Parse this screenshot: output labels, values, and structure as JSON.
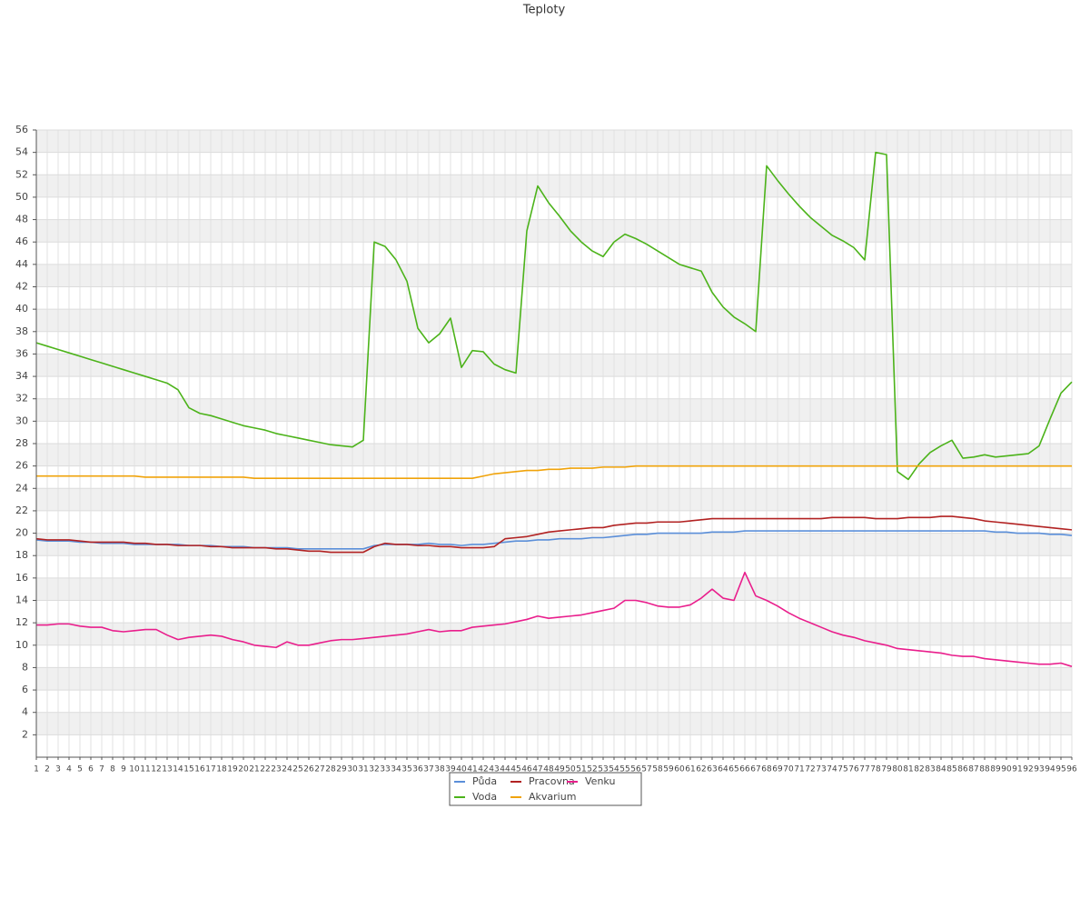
{
  "chart_data": {
    "type": "line",
    "title": "Teploty",
    "categories": [
      "1",
      "2",
      "3",
      "4",
      "5",
      "6",
      "7",
      "8",
      "9",
      "10",
      "11",
      "12",
      "13",
      "14",
      "15",
      "16",
      "17",
      "18",
      "19",
      "20",
      "21",
      "22",
      "23",
      "24",
      "25",
      "26",
      "27",
      "28",
      "29",
      "30",
      "31",
      "32",
      "33",
      "34",
      "35",
      "36",
      "37",
      "38",
      "39",
      "40",
      "41",
      "42",
      "43",
      "44",
      "45",
      "46",
      "47",
      "48",
      "49",
      "50",
      "51",
      "52",
      "53",
      "54",
      "55",
      "56",
      "57",
      "58",
      "59",
      "60",
      "61",
      "62",
      "63",
      "64",
      "65",
      "66",
      "67",
      "68",
      "69",
      "70",
      "71",
      "72",
      "73",
      "74",
      "75",
      "76",
      "77",
      "78",
      "79",
      "80",
      "81",
      "82",
      "83",
      "84",
      "85",
      "86",
      "87",
      "88",
      "89",
      "90",
      "91",
      "92",
      "93",
      "94",
      "95",
      "96"
    ],
    "series": [
      {
        "name": "Půda",
        "color": "#5b8fd9",
        "values": [
          19.4,
          19.3,
          19.3,
          19.3,
          19.2,
          19.2,
          19.1,
          19.1,
          19.1,
          19.0,
          19.0,
          19.0,
          19.0,
          19.0,
          18.9,
          18.9,
          18.9,
          18.8,
          18.8,
          18.8,
          18.7,
          18.7,
          18.7,
          18.7,
          18.6,
          18.6,
          18.6,
          18.6,
          18.6,
          18.6,
          18.6,
          18.9,
          19.0,
          19.0,
          19.0,
          19.0,
          19.1,
          19.0,
          19.0,
          18.9,
          19.0,
          19.0,
          19.1,
          19.2,
          19.3,
          19.3,
          19.4,
          19.4,
          19.5,
          19.5,
          19.5,
          19.6,
          19.6,
          19.7,
          19.8,
          19.9,
          19.9,
          20.0,
          20.0,
          20.0,
          20.0,
          20.0,
          20.1,
          20.1,
          20.1,
          20.2,
          20.2,
          20.2,
          20.2,
          20.2,
          20.2,
          20.2,
          20.2,
          20.2,
          20.2,
          20.2,
          20.2,
          20.2,
          20.2,
          20.2,
          20.2,
          20.2,
          20.2,
          20.2,
          20.2,
          20.2,
          20.2,
          20.2,
          20.1,
          20.1,
          20.0,
          20.0,
          20.0,
          19.9,
          19.9,
          19.8
        ]
      },
      {
        "name": "Voda",
        "color": "#4cb31a",
        "values": [
          37.0,
          36.7,
          36.4,
          36.1,
          35.8,
          35.5,
          35.2,
          34.9,
          34.6,
          34.3,
          34.0,
          33.7,
          33.4,
          32.8,
          31.2,
          30.7,
          30.5,
          30.2,
          29.9,
          29.6,
          29.4,
          29.2,
          28.9,
          28.7,
          28.5,
          28.3,
          28.1,
          27.9,
          27.8,
          27.7,
          28.3,
          46.0,
          45.6,
          44.4,
          42.5,
          38.3,
          37.0,
          37.8,
          39.2,
          34.8,
          36.3,
          36.2,
          35.1,
          34.6,
          34.3,
          47.0,
          51.0,
          49.5,
          48.3,
          47.0,
          46.0,
          45.2,
          44.7,
          46.0,
          46.7,
          46.3,
          45.8,
          45.2,
          44.6,
          44.0,
          43.7,
          43.4,
          41.5,
          40.2,
          39.3,
          38.7,
          38.0,
          52.8,
          51.5,
          50.3,
          49.2,
          48.2,
          47.4,
          46.6,
          46.1,
          45.5,
          44.4,
          54.0,
          53.8,
          25.5,
          24.8,
          26.2,
          27.2,
          27.8,
          28.3,
          26.7,
          26.8,
          27.0,
          26.8,
          26.9,
          27.0,
          27.1,
          27.8,
          30.2,
          32.5,
          33.5
        ]
      },
      {
        "name": "Pracovna",
        "color": "#b22222",
        "values": [
          19.5,
          19.4,
          19.4,
          19.4,
          19.3,
          19.2,
          19.2,
          19.2,
          19.2,
          19.1,
          19.1,
          19.0,
          19.0,
          18.9,
          18.9,
          18.9,
          18.8,
          18.8,
          18.7,
          18.7,
          18.7,
          18.7,
          18.6,
          18.6,
          18.5,
          18.4,
          18.4,
          18.3,
          18.3,
          18.3,
          18.3,
          18.8,
          19.1,
          19.0,
          19.0,
          18.9,
          18.9,
          18.8,
          18.8,
          18.7,
          18.7,
          18.7,
          18.8,
          19.5,
          19.6,
          19.7,
          19.9,
          20.1,
          20.2,
          20.3,
          20.4,
          20.5,
          20.5,
          20.7,
          20.8,
          20.9,
          20.9,
          21.0,
          21.0,
          21.0,
          21.1,
          21.2,
          21.3,
          21.3,
          21.3,
          21.3,
          21.3,
          21.3,
          21.3,
          21.3,
          21.3,
          21.3,
          21.3,
          21.4,
          21.4,
          21.4,
          21.4,
          21.3,
          21.3,
          21.3,
          21.4,
          21.4,
          21.4,
          21.5,
          21.5,
          21.4,
          21.3,
          21.1,
          21.0,
          20.9,
          20.8,
          20.7,
          20.6,
          20.5,
          20.4,
          20.3
        ]
      },
      {
        "name": "Akvarium",
        "color": "#f0a30a",
        "values": [
          25.1,
          25.1,
          25.1,
          25.1,
          25.1,
          25.1,
          25.1,
          25.1,
          25.1,
          25.1,
          25.0,
          25.0,
          25.0,
          25.0,
          25.0,
          25.0,
          25.0,
          25.0,
          25.0,
          25.0,
          24.9,
          24.9,
          24.9,
          24.9,
          24.9,
          24.9,
          24.9,
          24.9,
          24.9,
          24.9,
          24.9,
          24.9,
          24.9,
          24.9,
          24.9,
          24.9,
          24.9,
          24.9,
          24.9,
          24.9,
          24.9,
          25.1,
          25.3,
          25.4,
          25.5,
          25.6,
          25.6,
          25.7,
          25.7,
          25.8,
          25.8,
          25.8,
          25.9,
          25.9,
          25.9,
          26.0,
          26.0,
          26.0,
          26.0,
          26.0,
          26.0,
          26.0,
          26.0,
          26.0,
          26.0,
          26.0,
          26.0,
          26.0,
          26.0,
          26.0,
          26.0,
          26.0,
          26.0,
          26.0,
          26.0,
          26.0,
          26.0,
          26.0,
          26.0,
          26.0,
          26.0,
          26.0,
          26.0,
          26.0,
          26.0,
          26.0,
          26.0,
          26.0,
          26.0,
          26.0,
          26.0,
          26.0,
          26.0,
          26.0,
          26.0,
          26.0
        ]
      },
      {
        "name": "Venku",
        "color": "#e91e8c",
        "values": [
          11.8,
          11.8,
          11.9,
          11.9,
          11.7,
          11.6,
          11.6,
          11.3,
          11.2,
          11.3,
          11.4,
          11.4,
          10.9,
          10.5,
          10.7,
          10.8,
          10.9,
          10.8,
          10.5,
          10.3,
          10.0,
          9.9,
          9.8,
          10.3,
          10.0,
          10.0,
          10.2,
          10.4,
          10.5,
          10.5,
          10.6,
          10.7,
          10.8,
          10.9,
          11.0,
          11.2,
          11.4,
          11.2,
          11.3,
          11.3,
          11.6,
          11.7,
          11.8,
          11.9,
          12.1,
          12.3,
          12.6,
          12.4,
          12.5,
          12.6,
          12.7,
          12.9,
          13.1,
          13.3,
          14.0,
          14.0,
          13.8,
          13.5,
          13.4,
          13.4,
          13.6,
          14.2,
          15.0,
          14.2,
          14.0,
          16.5,
          14.4,
          14.0,
          13.5,
          12.9,
          12.4,
          12.0,
          11.6,
          11.2,
          10.9,
          10.7,
          10.4,
          10.2,
          10.0,
          9.7,
          9.6,
          9.5,
          9.4,
          9.3,
          9.1,
          9.0,
          9.0,
          8.8,
          8.7,
          8.6,
          8.5,
          8.4,
          8.3,
          8.3,
          8.4,
          8.1
        ]
      }
    ],
    "ylim": [
      0,
      56
    ],
    "yticks": [
      2,
      4,
      6,
      8,
      10,
      12,
      14,
      16,
      18,
      20,
      22,
      24,
      26,
      28,
      30,
      32,
      34,
      36,
      38,
      40,
      42,
      44,
      46,
      48,
      50,
      52,
      54,
      56
    ],
    "grid": true
  }
}
